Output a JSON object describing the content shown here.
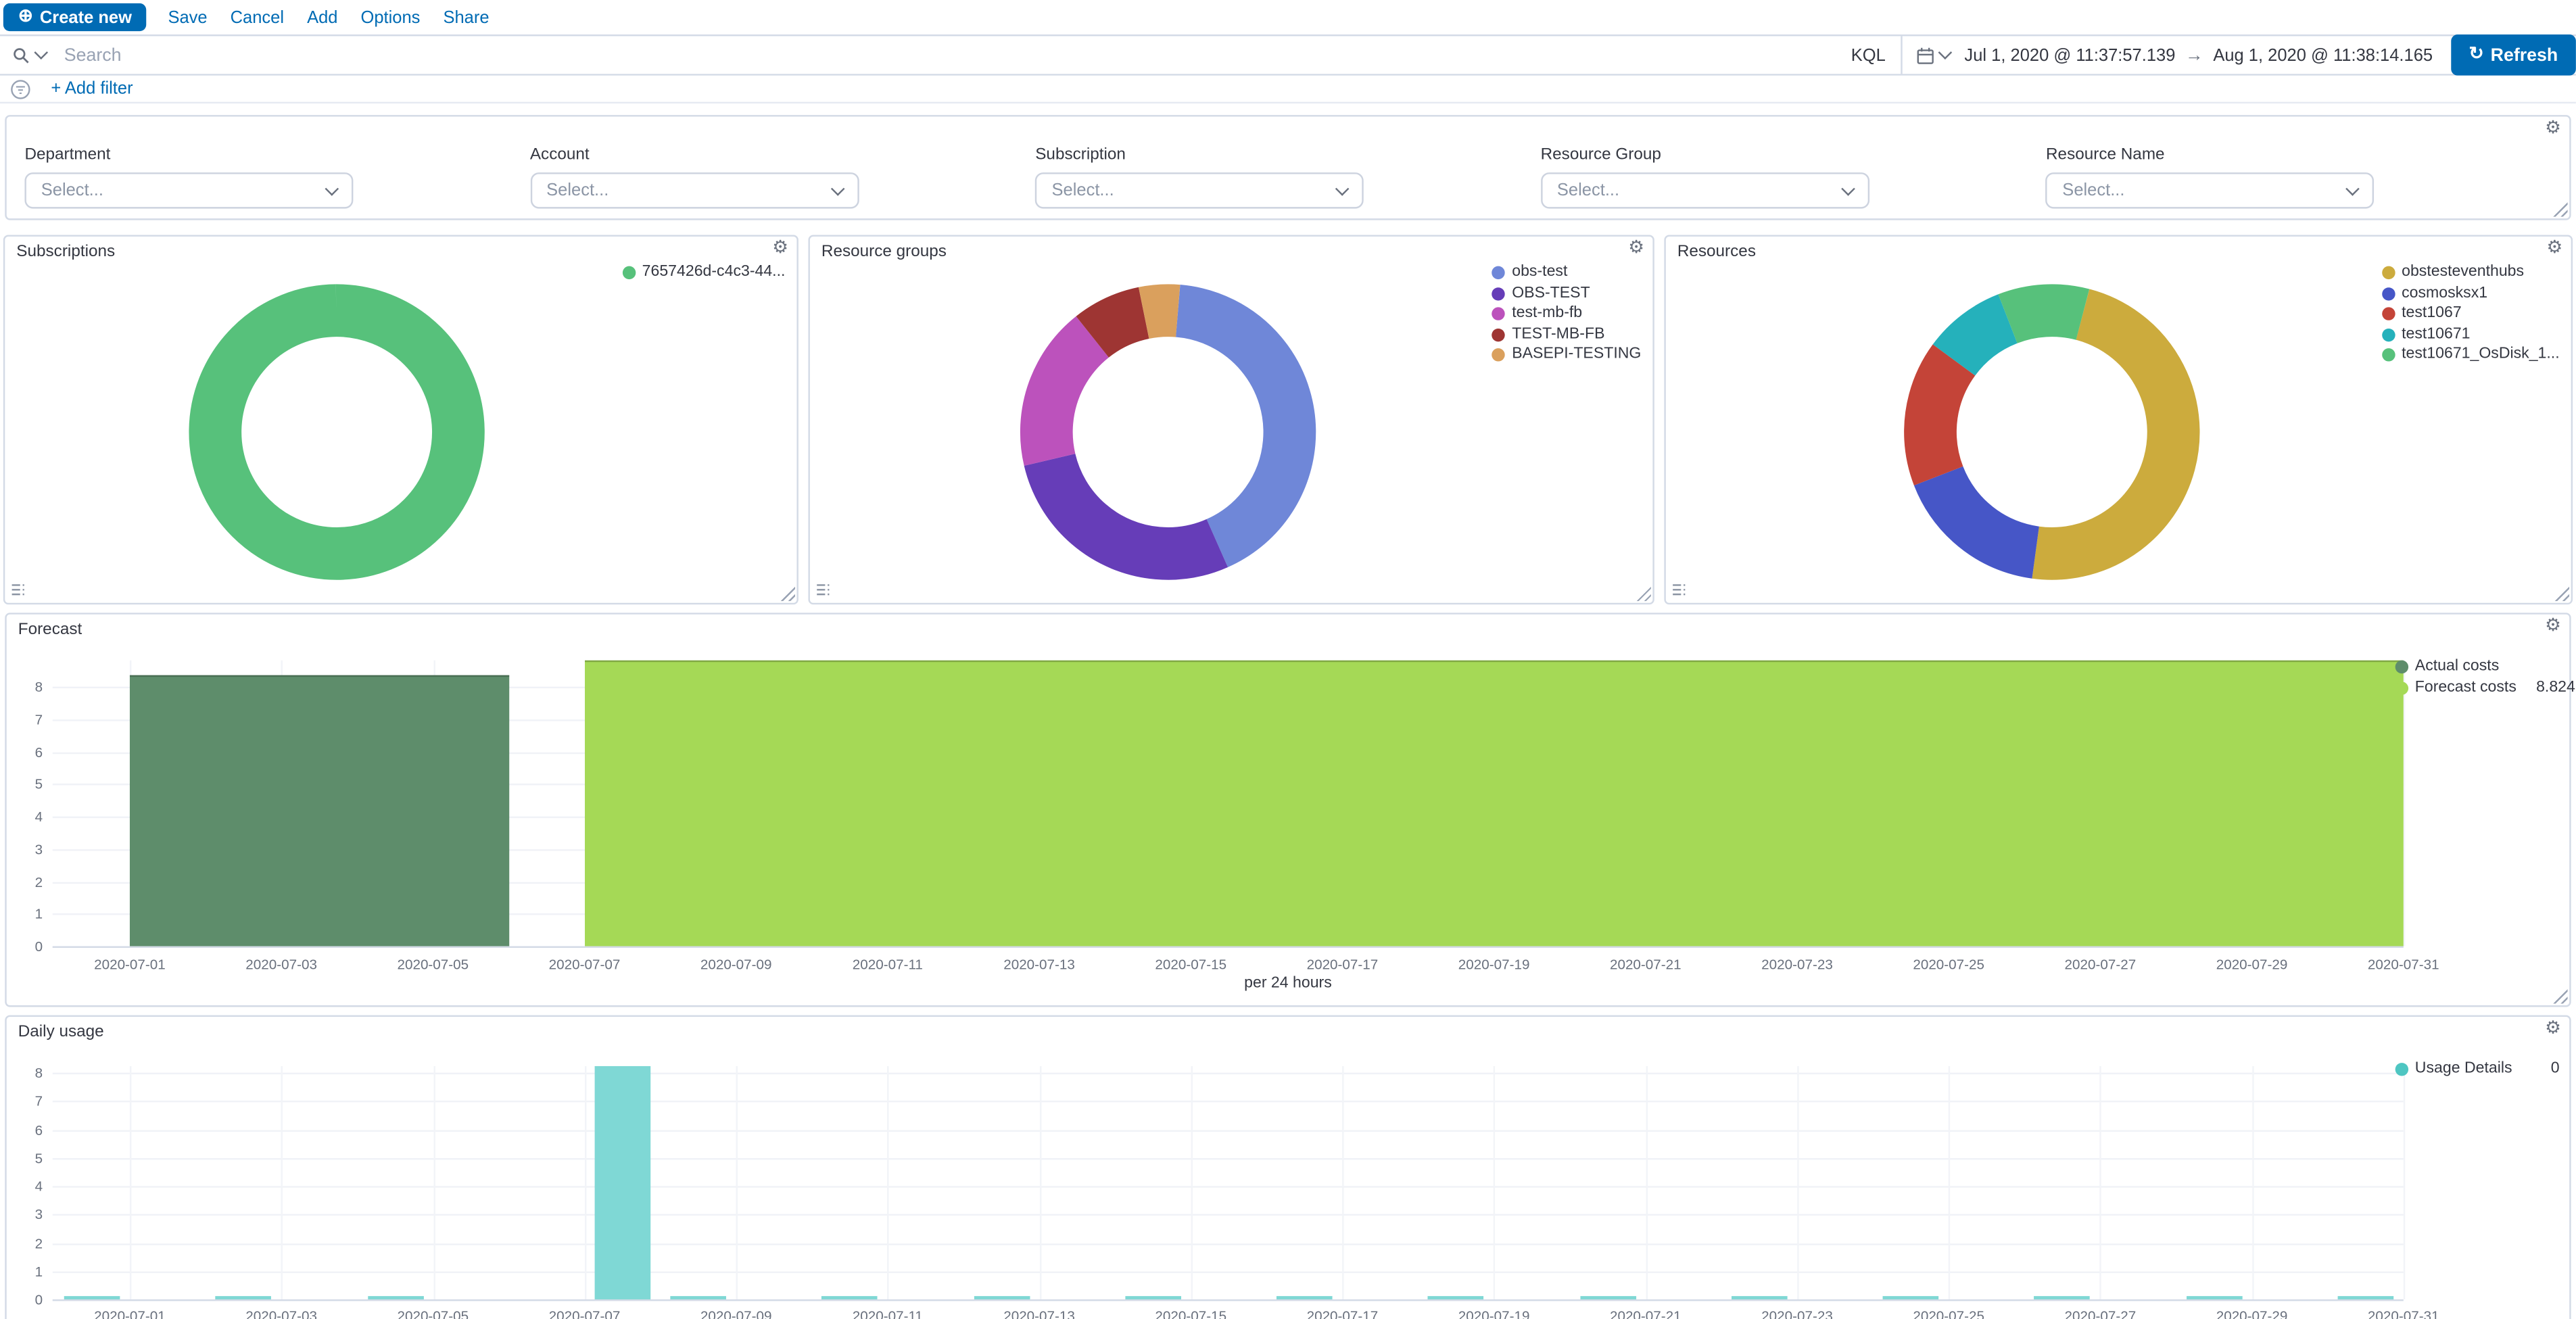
{
  "icons": {
    "gear": "⚙",
    "refresh": "↻",
    "plus_circle": "⊕",
    "arrow_right": "→"
  },
  "colors": {
    "primary": "#006bb4",
    "border": "#d3dae6",
    "text": "#343741",
    "subdued": "#69707d"
  },
  "toolbar": {
    "create_new_label": "Create new",
    "menu_items": [
      "Save",
      "Cancel",
      "Add",
      "Options",
      "Share"
    ]
  },
  "search": {
    "placeholder": "Search",
    "kql_label": "KQL",
    "date_from": "Jul 1, 2020 @ 11:37:57.139",
    "date_to": "Aug 1, 2020 @ 11:38:14.165",
    "refresh_label": "Refresh"
  },
  "filter_bar": {
    "add_filter_label": "+ Add filter"
  },
  "controls": {
    "groups": [
      {
        "label": "Department",
        "value": "Select..."
      },
      {
        "label": "Account",
        "value": "Select..."
      },
      {
        "label": "Subscription",
        "value": "Select..."
      },
      {
        "label": "Resource Group",
        "value": "Select..."
      },
      {
        "label": "Resource Name",
        "value": "Select..."
      }
    ]
  },
  "chart_data": [
    {
      "type": "pie",
      "title": "Subscriptions",
      "labels": [
        "7657426d-c4c3-44..."
      ],
      "values": [
        100
      ],
      "colors": [
        "#57c17b"
      ],
      "start_angle": 0,
      "legend_position": "top-right"
    },
    {
      "type": "pie",
      "title": "Resource groups",
      "labels": [
        "obs-test",
        "OBS-TEST",
        "test-mb-fb",
        "TEST-MB-FB",
        "BASEPI-TESTING"
      ],
      "values": [
        42,
        28,
        18,
        7.5,
        4.5
      ],
      "colors": [
        "#6f87d8",
        "#663db8",
        "#bc52bc",
        "#9e3533",
        "#daa05d"
      ],
      "start_angle": 5,
      "legend_position": "top-right"
    },
    {
      "type": "pie",
      "title": "Resources",
      "labels": [
        "obstesteventhubs",
        "cosmosksx1",
        "test1067",
        "test10671",
        "test10671_OsDisk_1..."
      ],
      "values": [
        48,
        17,
        16,
        9,
        10
      ],
      "colors": [
        "#ccab3d",
        "#4656c7",
        "#c44438",
        "#25b1bb",
        "#57c17b"
      ],
      "start_angle": 15,
      "legend_position": "top-right"
    },
    {
      "type": "area",
      "title": "Forecast",
      "xlabel": "per 24 hours",
      "y_ticks": [
        8,
        7,
        6,
        5,
        4,
        3,
        2,
        1,
        0
      ],
      "x_tick_labels": [
        "2020-07-01",
        "2020-07-03",
        "2020-07-05",
        "2020-07-07",
        "2020-07-09",
        "2020-07-11",
        "2020-07-13",
        "2020-07-15",
        "2020-07-17",
        "2020-07-19",
        "2020-07-21",
        "2020-07-23",
        "2020-07-25",
        "2020-07-27",
        "2020-07-29",
        "2020-07-31"
      ],
      "x_domain": [
        "2020-07-01",
        "2020-07-31"
      ],
      "series": [
        {
          "name": "Actual costs",
          "color": "#5e8d6b",
          "start": "2020-07-01",
          "end": "2020-07-06",
          "value": 8.35,
          "legend_value": ""
        },
        {
          "name": "Forecast costs",
          "color": "#a5d956",
          "start": "2020-07-07",
          "end": "2020-07-31",
          "value": 8.824,
          "legend_value": "8.824"
        }
      ],
      "legend_position": "right"
    },
    {
      "type": "bar",
      "title": "Daily usage",
      "y_ticks": [
        8,
        7,
        6,
        5,
        4,
        3,
        2,
        1,
        0
      ],
      "x_tick_labels": [
        "2020-07-01",
        "2020-07-03",
        "2020-07-05",
        "2020-07-07",
        "2020-07-09",
        "2020-07-11",
        "2020-07-13",
        "2020-07-15",
        "2020-07-17",
        "2020-07-19",
        "2020-07-21",
        "2020-07-23",
        "2020-07-25",
        "2020-07-27",
        "2020-07-29",
        "2020-07-31"
      ],
      "x_domain": [
        "2020-07-01",
        "2020-07-31"
      ],
      "bar_color": "#7fd8d5",
      "bars": [
        {
          "day": 1,
          "value": 0.12
        },
        {
          "day": 3,
          "value": 0.12
        },
        {
          "day": 5,
          "value": 0.12
        },
        {
          "day": 8,
          "value": 8.23
        },
        {
          "day": 9,
          "value": 0.12
        },
        {
          "day": 11,
          "value": 0.12
        },
        {
          "day": 13,
          "value": 0.12
        },
        {
          "day": 15,
          "value": 0.12
        },
        {
          "day": 17,
          "value": 0.12
        },
        {
          "day": 19,
          "value": 0.12
        },
        {
          "day": 21,
          "value": 0.12
        },
        {
          "day": 23,
          "value": 0.12
        },
        {
          "day": 25,
          "value": 0.12
        },
        {
          "day": 27,
          "value": 0.12
        },
        {
          "day": 29,
          "value": 0.12
        },
        {
          "day": 31,
          "value": 0.12
        }
      ],
      "legend": [
        {
          "label": "Usage Details",
          "color": "#4ec6c2",
          "value": "0"
        }
      ],
      "legend_position": "right"
    }
  ]
}
